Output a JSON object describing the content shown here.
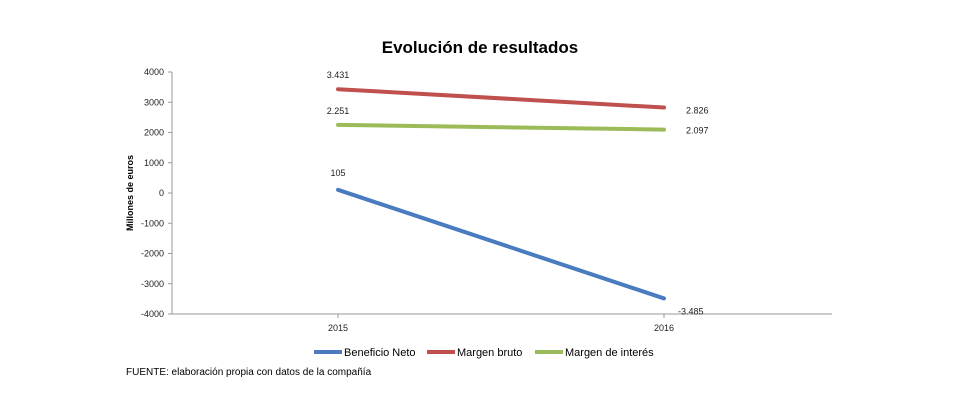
{
  "chart_data": {
    "type": "line",
    "title": "Evolución de resultados",
    "ylabel": "Millones de euros",
    "xlabel": "",
    "categories": [
      "2015",
      "2016"
    ],
    "ylim": [
      -4000,
      4000
    ],
    "yticks": [
      4000,
      3000,
      2000,
      1000,
      0,
      -1000,
      -2000,
      -3000,
      -4000
    ],
    "grid": false,
    "legend_position": "bottom-left",
    "series": [
      {
        "name": "Beneficio Neto",
        "color": "#4a7bc0",
        "values": [
          105,
          -3485
        ],
        "labels": [
          "105",
          "-3.485"
        ]
      },
      {
        "name": "Margen bruto",
        "color": "#c0504d",
        "values": [
          3431,
          2826
        ],
        "labels": [
          "3.431",
          "2.826"
        ]
      },
      {
        "name": "Margen de interés",
        "color": "#9bbb59",
        "values": [
          2251,
          2097
        ],
        "labels": [
          "2.251",
          "2.097"
        ]
      }
    ]
  },
  "source_note": "FUENTE: elaboración propia con datos de la compañía"
}
